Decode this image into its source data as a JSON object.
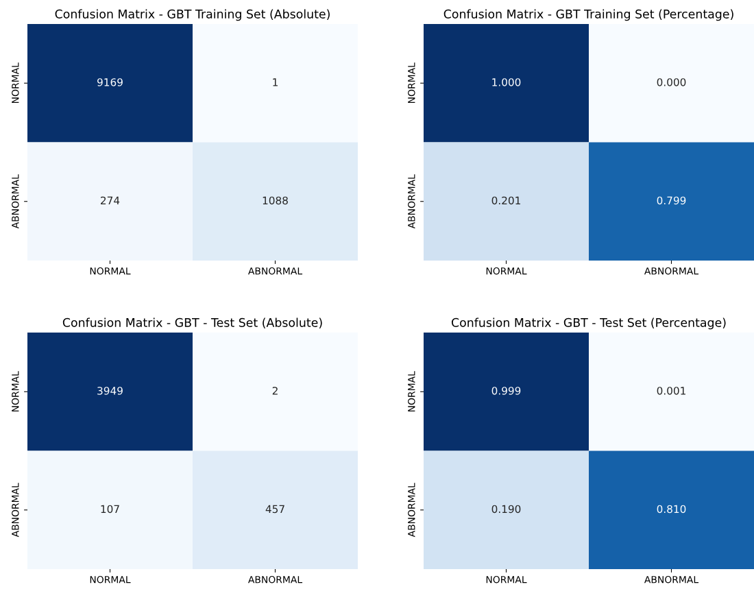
{
  "chart_data": [
    {
      "type": "heatmap",
      "title": "Confusion Matrix - GBT Training Set (Absolute)",
      "categories": [
        "NORMAL",
        "ABNORMAL"
      ],
      "y_categories": [
        "NORMAL",
        "ABNORMAL"
      ],
      "cells": [
        [
          9169,
          1
        ],
        [
          274,
          1088
        ]
      ],
      "data_labels": true
    },
    {
      "type": "heatmap",
      "title": "Confusion Matrix - GBT Training Set (Percentage)",
      "categories": [
        "NORMAL",
        "ABNORMAL"
      ],
      "y_categories": [
        "NORMAL",
        "ABNORMAL"
      ],
      "cells": [
        [
          1.0,
          0.0
        ],
        [
          0.201,
          0.799
        ]
      ],
      "cell_labels": [
        [
          "1.000",
          "0.000"
        ],
        [
          "0.201",
          "0.799"
        ]
      ]
    },
    {
      "type": "heatmap",
      "title": "Confusion Matrix - GBT - Test Set (Absolute)",
      "categories": [
        "NORMAL",
        "ABNORMAL"
      ],
      "y_categories": [
        "NORMAL",
        "ABNORMAL"
      ],
      "cells": [
        [
          3949,
          2
        ],
        [
          107,
          457
        ]
      ],
      "data_labels": true
    },
    {
      "type": "heatmap",
      "title": "Confusion Matrix - GBT - Test Set (Percentage)",
      "categories": [
        "NORMAL",
        "ABNORMAL"
      ],
      "y_categories": [
        "NORMAL",
        "ABNORMAL"
      ],
      "cells": [
        [
          0.999,
          0.001
        ],
        [
          0.19,
          0.81
        ]
      ],
      "cell_labels": [
        [
          "0.999",
          "0.001"
        ],
        [
          "0.190",
          "0.810"
        ]
      ]
    }
  ]
}
